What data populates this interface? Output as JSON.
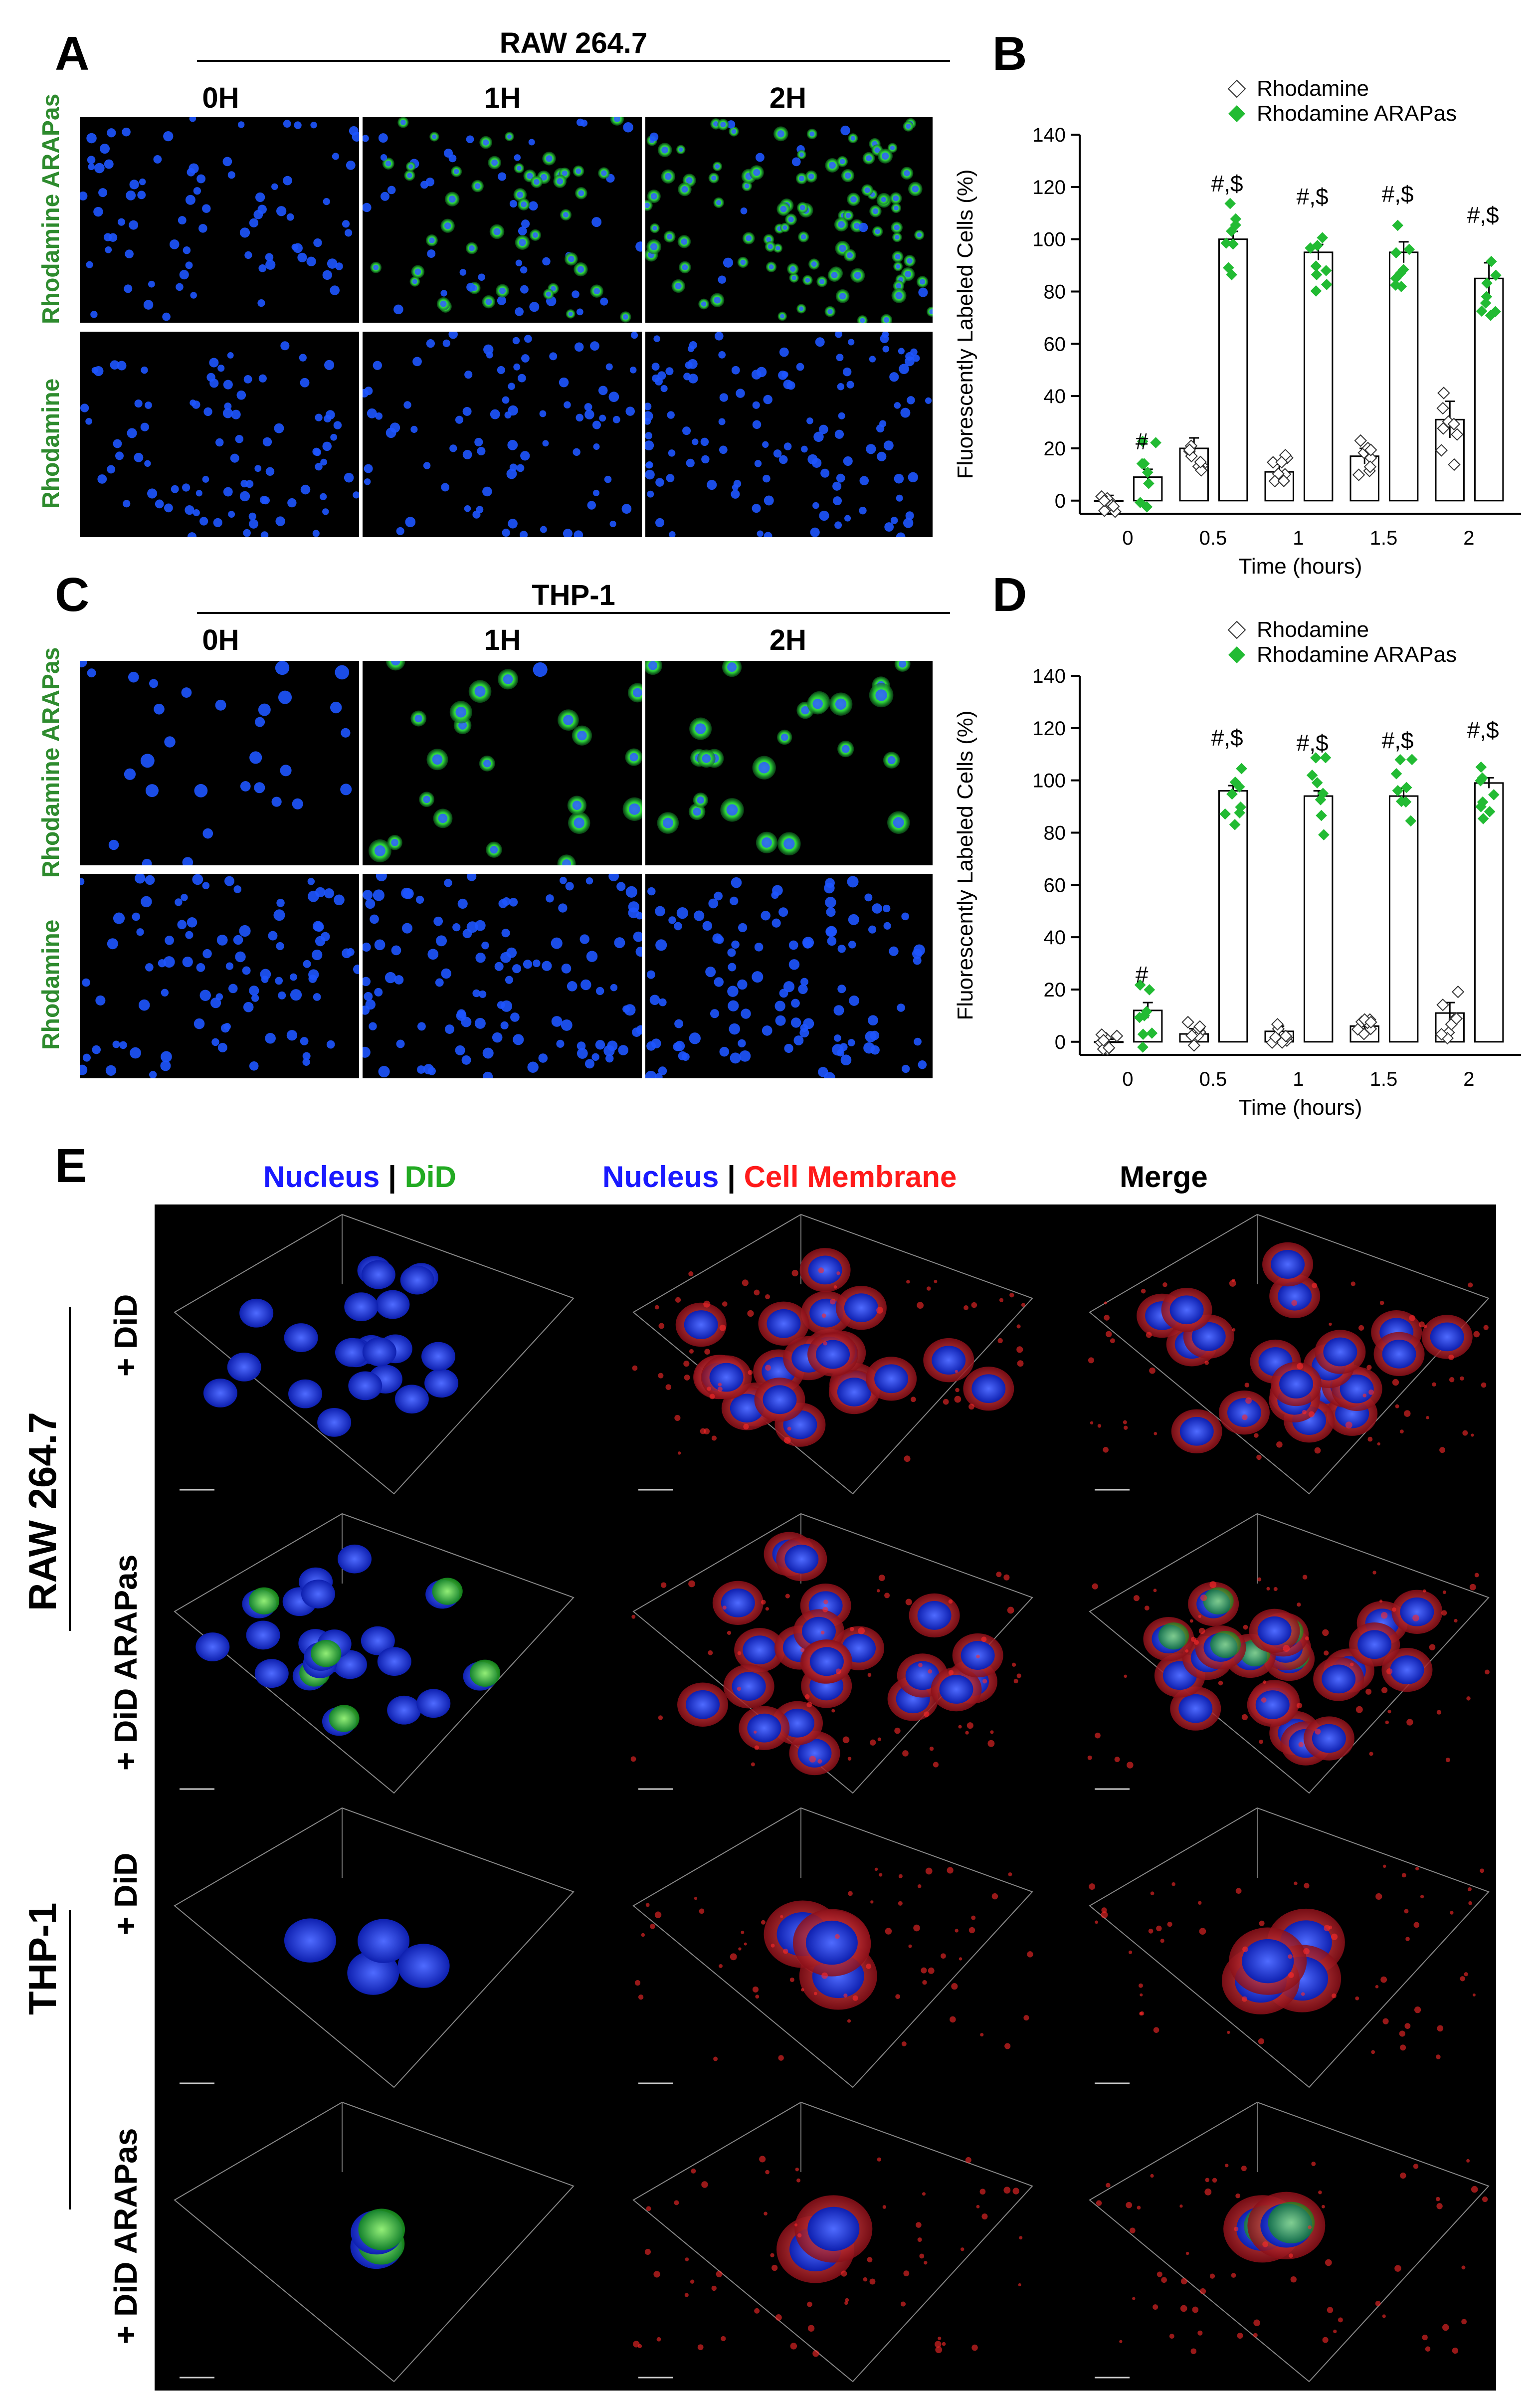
{
  "panels": {
    "A": {
      "letter": "A",
      "title": "RAW 264.7",
      "columns": [
        "0H",
        "1H",
        "2H"
      ],
      "rows": [
        "Rhodamine ARAPas",
        "Rhodamine"
      ]
    },
    "C": {
      "letter": "C",
      "title": "THP-1",
      "columns": [
        "0H",
        "1H",
        "2H"
      ],
      "rows": [
        "Rhodamine ARAPas",
        "Rhodamine"
      ]
    },
    "E": {
      "letter": "E",
      "col_headers": [
        {
          "parts": [
            {
              "text": "Nucleus",
              "color": "#1a1aff"
            },
            {
              "text": " | ",
              "color": "#000000"
            },
            {
              "text": "DiD",
              "color": "#22aa22"
            }
          ]
        },
        {
          "parts": [
            {
              "text": "Nucleus",
              "color": "#1a1aff"
            },
            {
              "text": " | ",
              "color": "#000000"
            },
            {
              "text": "Cell Membrane",
              "color": "#ff1a1a"
            }
          ]
        },
        {
          "parts": [
            {
              "text": "Merge",
              "color": "#000000"
            }
          ]
        }
      ],
      "groups": [
        "RAW 264.7",
        "THP-1"
      ],
      "rows": [
        "+ DiD",
        "+ DiD ARAPas",
        "+ DiD",
        "+ DiD ARAPas"
      ]
    }
  },
  "chart_data": [
    {
      "panel": "B",
      "type": "bar",
      "xlabel": "Time (hours)",
      "ylabel": "Fluorescently Labeled Cells (%)",
      "ylim": [
        -5,
        140
      ],
      "yticks": [
        0,
        20,
        40,
        60,
        80,
        100,
        120,
        140
      ],
      "xticks": [
        "0",
        "0.5",
        "1",
        "1.5",
        "2"
      ],
      "legend": [
        "Rhodamine",
        "Rhodamine ARAPas"
      ],
      "legend_position": "top",
      "series": [
        {
          "name": "Rhodamine",
          "values": [
            0,
            20,
            11,
            17,
            31
          ],
          "errors": [
            2,
            4,
            3,
            3,
            7
          ]
        },
        {
          "name": "Rhodamine ARAPas",
          "values": [
            9,
            100,
            95,
            95,
            85
          ],
          "errors": [
            3,
            3,
            3,
            4,
            6
          ]
        }
      ],
      "annotations": [
        "#",
        "#,$",
        "#,$",
        "#,$",
        "#,$"
      ],
      "colors": {
        "Rhodamine": "#ffffff",
        "Rhodamine ARAPas": "#22bb33"
      }
    },
    {
      "panel": "D",
      "type": "bar",
      "xlabel": "Time (hours)",
      "ylabel": "Fluorescently Labeled Cells (%)",
      "ylim": [
        -5,
        140
      ],
      "yticks": [
        0,
        20,
        40,
        60,
        80,
        100,
        120,
        140
      ],
      "xticks": [
        "0",
        "0.5",
        "1",
        "1.5",
        "2"
      ],
      "legend": [
        "Rhodamine",
        "Rhodamine ARAPas"
      ],
      "legend_position": "top",
      "series": [
        {
          "name": "Rhodamine",
          "values": [
            0,
            3,
            4,
            6,
            11
          ],
          "errors": [
            1,
            2,
            2,
            2,
            4
          ]
        },
        {
          "name": "Rhodamine ARAPas",
          "values": [
            12,
            96,
            94,
            94,
            99
          ],
          "errors": [
            3,
            2,
            2,
            3,
            2
          ]
        }
      ],
      "annotations": [
        "#",
        "#,$",
        "#,$",
        "#,$",
        "#,$"
      ],
      "colors": {
        "Rhodamine": "#ffffff",
        "Rhodamine ARAPas": "#22bb33"
      }
    }
  ]
}
